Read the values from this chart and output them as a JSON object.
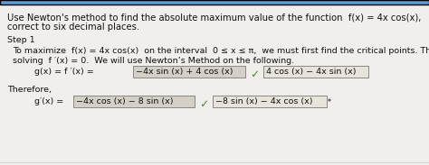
{
  "top_bar_color": "#5b9bd5",
  "background_color": "#f0efeb",
  "white_bg": "#ffffff",
  "title_line1": "Use Newton's method to find the absolute maximum value of the function  f(x) = 4x cos(x),   0 ≤ x ≤ π",
  "title_line2": "correct to six decimal places.",
  "step_label": "Step 1",
  "para1_line1": "To maximize  f(x) = 4x cos(x)  on the interval  0 ≤ x ≤ π,  we must first find the critical points. This requires",
  "para1_line2": "solving  f ′(x) = 0.  We will use Newton’s Method on the following.",
  "g_eq_prefix": "g(x) = f ′(x) = ",
  "g_eq_box": "−4x sin (x) + 4 cos (x)",
  "g_eq_alt": "4 cos (x) − 4x sin (x)",
  "therefore_label": "Therefore,",
  "gp_eq_prefix": "g′(x) = ",
  "gp_eq_box": "−4x cos (x) − 8 sin (x)",
  "gp_eq_alt": "−8 sin (x) − 4x cos (x)",
  "box_facecolor": "#d4d0c8",
  "box_edgecolor": "#888880",
  "alt_box_facecolor": "#e8e4dc",
  "alt_box_edgecolor": "#888880",
  "check_color": "#4a8a3a",
  "text_color": "#111111",
  "italic_color": "#111111",
  "font_size": 7.2,
  "step_font_size": 6.8,
  "body_font_size": 6.8
}
